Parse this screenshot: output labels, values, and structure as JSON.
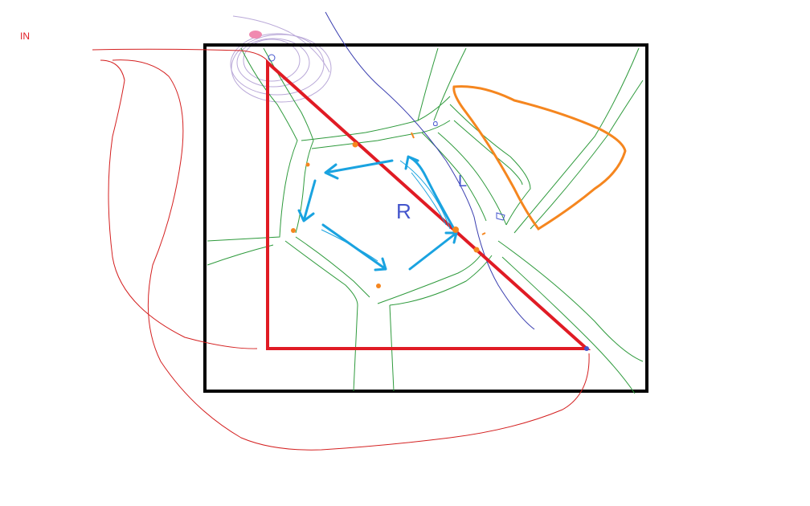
{
  "labels": {
    "in": "IN",
    "r": "R",
    "l": "L"
  },
  "colors": {
    "background": "#ffffff",
    "frame": "#000000",
    "road_edge": "#2e9a3c",
    "red_path": "#e01b24",
    "thin_red": "#d42020",
    "blue_arrows": "#1aa3e0",
    "orange": "#f5861f",
    "navy_stroke": "#3b3fb0",
    "lavender": "#b9a8d8",
    "pink_blob": "#f08ab0",
    "dark_blue_mark": "#4455cc"
  },
  "icons": {
    "arrow": "arrow-icon",
    "point": "dot-marker"
  }
}
